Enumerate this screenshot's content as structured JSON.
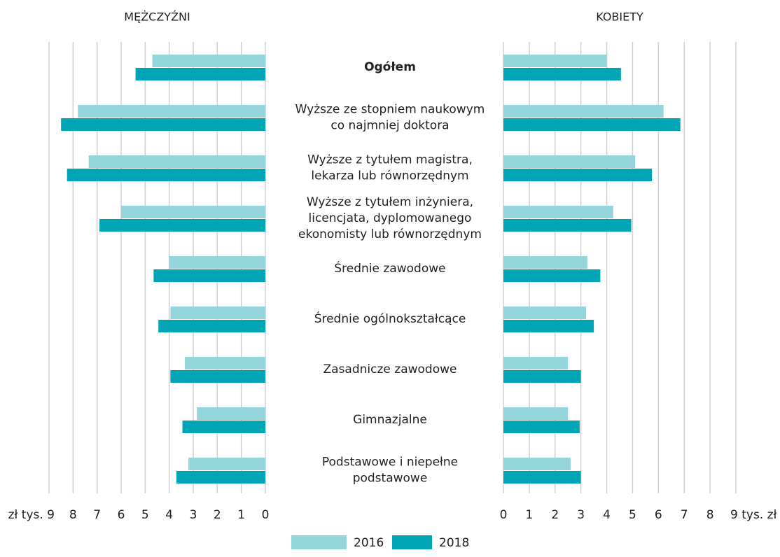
{
  "chart_data": {
    "type": "butterfly",
    "categories": [
      [
        "Ogółem"
      ],
      [
        "Wyższe ze stopniem naukowym",
        "co najmniej doktora"
      ],
      [
        "Wyższe z tytułem magistra,",
        "lekarza lub równorzędnym"
      ],
      [
        "Wyższe z tytułem inżyniera,",
        "licencjata, dyplomowanego",
        "ekonomisty lub równorzędnym"
      ],
      [
        "Średnie zawodowe"
      ],
      [
        "Średnie ogólnokształcące"
      ],
      [
        "Zasadnicze zawodowe"
      ],
      [
        "Gimnazjalne"
      ],
      [
        "Podstawowe i niepełne",
        "podstawowe"
      ]
    ],
    "series": [
      {
        "name": "2016",
        "color": "#93d5db"
      },
      {
        "name": "2018",
        "color": "#00a5b5"
      }
    ],
    "panels": [
      {
        "title": "MĘŻCZYŹNI",
        "side": "left",
        "xlim": [
          0,
          9
        ],
        "xticks": [
          0,
          1,
          2,
          3,
          4,
          5,
          6,
          7,
          8,
          {
            "value": 9,
            "label": "zł tys. 9"
          }
        ],
        "values": [
          [
            4.7,
            7.8,
            7.35,
            6.0,
            4.0,
            3.95,
            3.35,
            2.85,
            3.2
          ],
          [
            5.4,
            8.5,
            8.25,
            6.9,
            4.65,
            4.45,
            3.95,
            3.45,
            3.7
          ]
        ]
      },
      {
        "title": "KOBIETY",
        "side": "right",
        "xlim": [
          0,
          9
        ],
        "xticks": [
          0,
          1,
          2,
          3,
          4,
          5,
          6,
          7,
          8,
          {
            "value": 9,
            "label": "9 tys. zł"
          }
        ],
        "values": [
          [
            4.0,
            6.2,
            5.1,
            4.25,
            3.25,
            3.2,
            2.5,
            2.5,
            2.6
          ],
          [
            4.55,
            6.85,
            5.75,
            4.95,
            3.75,
            3.5,
            3.0,
            2.95,
            3.0
          ]
        ]
      }
    ]
  }
}
